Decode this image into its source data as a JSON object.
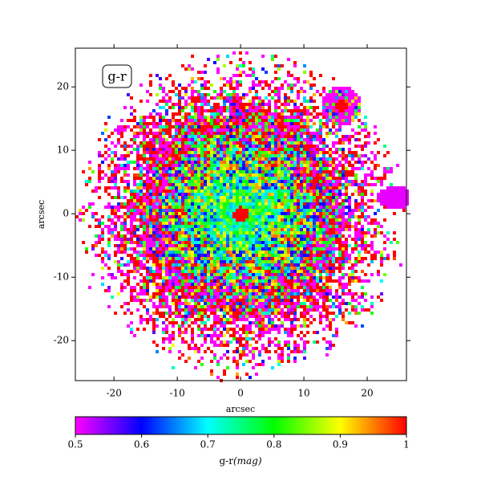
{
  "chart_data": {
    "type": "image",
    "annotation": "g-r",
    "xlabel": "arcsec",
    "ylabel": "arcsec",
    "xlim": [
      -26.1,
      26.2
    ],
    "ylim": [
      -26.3,
      26.1
    ],
    "xticks": [
      -20,
      -10,
      0,
      10,
      20
    ],
    "yticks": [
      -20,
      -10,
      0,
      10,
      20
    ],
    "colorbar": {
      "lim": [
        0.5,
        1.0
      ],
      "ticks": [
        0.5,
        0.6,
        0.7,
        0.8,
        0.9,
        1.0
      ],
      "label": "g-r",
      "unit": "(mag)",
      "colors": [
        "#ff00ff",
        "#0000ff",
        "#00ffff",
        "#00ff00",
        "#ffff00",
        "#ff0000"
      ]
    }
  }
}
